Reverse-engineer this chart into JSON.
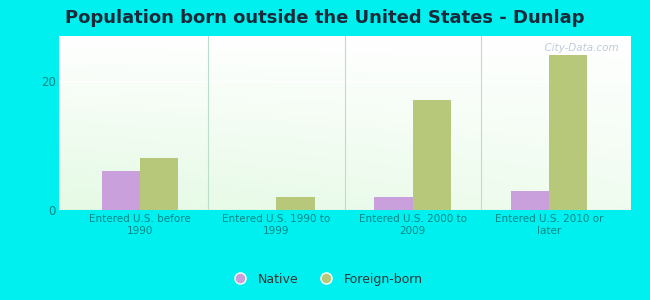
{
  "title": "Population born outside the United States - Dunlap",
  "categories": [
    "Entered U.S. before\n1990",
    "Entered U.S. 1990 to\n1999",
    "Entered U.S. 2000 to\n2009",
    "Entered U.S. 2010 or\nlater"
  ],
  "native_values": [
    6,
    0,
    2,
    3
  ],
  "foreign_values": [
    8,
    2,
    17,
    24
  ],
  "native_color": "#c9a0dc",
  "foreign_color": "#b8c87a",
  "bar_width": 0.28,
  "ylim": [
    0,
    27
  ],
  "yticks": [
    0,
    20
  ],
  "outer_bg": "#00f0f0",
  "title_fontsize": 13,
  "title_color": "#1a2a3a",
  "axis_label_color": "#008888",
  "tick_color": "#008888",
  "watermark": "  City-Data.com",
  "legend_native": "Native",
  "legend_foreign": "Foreign-born",
  "plot_bg_left": "#d0ecd8",
  "plot_bg_right": "#f5fff5",
  "grid_line_color": "#e0eedd",
  "separator_color": "#bbddcc"
}
